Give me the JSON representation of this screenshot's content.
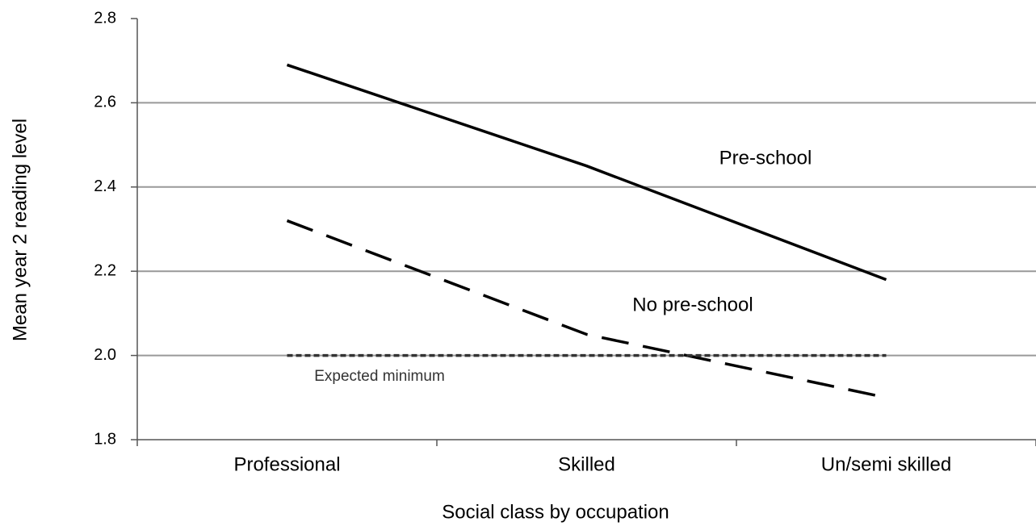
{
  "chart_data": {
    "type": "line",
    "x_label": "Social class by occupation",
    "y_label": "Mean year 2 reading level",
    "categories": [
      "Professional",
      "Skilled",
      "Un/semi skilled"
    ],
    "series": [
      {
        "name": "Pre-school",
        "color": "#000000",
        "style": "solid",
        "values": [
          2.69,
          2.45,
          2.18
        ]
      },
      {
        "name": "No pre-school",
        "color": "#000000",
        "style": "dashed",
        "values": [
          2.32,
          2.05,
          1.9
        ]
      },
      {
        "name": "Expected minimum",
        "color": "#333333",
        "style": "dotted",
        "values": [
          2.0,
          2.0,
          2.0
        ]
      }
    ],
    "ylim": [
      1.8,
      2.8
    ],
    "yticks": [
      1.8,
      {
        "value": 2,
        "label": "2.0"
      },
      2.2,
      2.4,
      2.6,
      2.8
    ],
    "grid": true
  }
}
